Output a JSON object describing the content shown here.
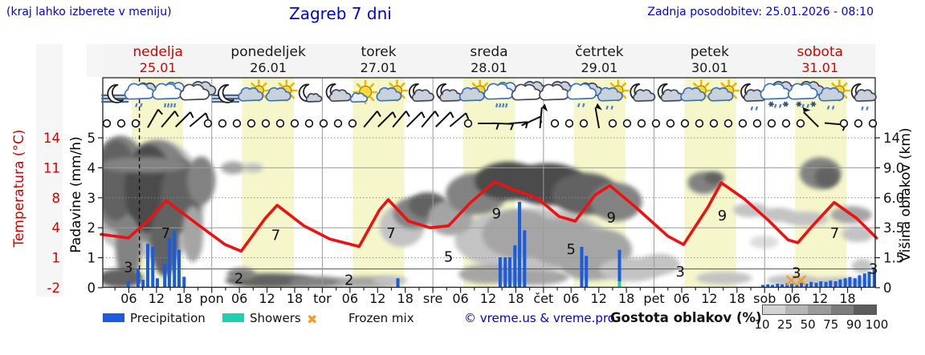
{
  "header": {
    "hint": "(kraj lahko izberete v meniju)",
    "title": "Zagreb 7 dni",
    "updated": "Zadnja posodobitev: 25.01.2026 - 08:10"
  },
  "days": [
    {
      "name": "nedelja",
      "date": "25.01",
      "highlight": true
    },
    {
      "name": "ponedeljek",
      "date": "26.01",
      "highlight": false
    },
    {
      "name": "torek",
      "date": "27.01",
      "highlight": false
    },
    {
      "name": "sreda",
      "date": "28.01",
      "highlight": false
    },
    {
      "name": "četrtek",
      "date": "29.01",
      "highlight": false
    },
    {
      "name": "petek",
      "date": "30.01",
      "highlight": false
    },
    {
      "name": "sobota",
      "date": "31.01",
      "highlight": true
    }
  ],
  "axes": {
    "temp_label": "Temperatura (°C)",
    "temp_ticks": [
      "14",
      "11",
      "8",
      "4",
      "1",
      "-2"
    ],
    "precip_label": "Padavine (mm/h)",
    "precip_ticks": [
      "5",
      "4",
      "3",
      "2",
      "1",
      "0"
    ],
    "cloud_label": "Višina oblakov (km)",
    "cloud_ticks": [
      "14",
      "9.0",
      "6.0",
      "3.5",
      "1.5",
      "0"
    ],
    "x_ticks": [
      {
        "label": "06",
        "h": 6
      },
      {
        "label": "12",
        "h": 12
      },
      {
        "label": "18",
        "h": 18
      },
      {
        "label": "pon",
        "h": 24
      },
      {
        "label": "06",
        "h": 30
      },
      {
        "label": "12",
        "h": 36
      },
      {
        "label": "18",
        "h": 42
      },
      {
        "label": "tor",
        "h": 48
      },
      {
        "label": "06",
        "h": 54
      },
      {
        "label": "12",
        "h": 60
      },
      {
        "label": "18",
        "h": 66
      },
      {
        "label": "sre",
        "h": 72
      },
      {
        "label": "06",
        "h": 78
      },
      {
        "label": "12",
        "h": 84
      },
      {
        "label": "18",
        "h": 90
      },
      {
        "label": "čet",
        "h": 96
      },
      {
        "label": "06",
        "h": 102
      },
      {
        "label": "12",
        "h": 108
      },
      {
        "label": "18",
        "h": 114
      },
      {
        "label": "pet",
        "h": 120
      },
      {
        "label": "06",
        "h": 126
      },
      {
        "label": "12",
        "h": 132
      },
      {
        "label": "18",
        "h": 138
      },
      {
        "label": "sob",
        "h": 144
      },
      {
        "label": "06",
        "h": 150
      },
      {
        "label": "12",
        "h": 156
      },
      {
        "label": "18",
        "h": 162
      }
    ]
  },
  "legend": {
    "precipitation": "Precipitation",
    "showers": "Showers",
    "frozen_mix": "Frozen mix",
    "frozen_glyph": "✖",
    "copyright": "© vreme.us & vreme.pro",
    "cloud_density_label": "Gostota oblakov (%)",
    "cloud_density_ticks": [
      "10",
      "25",
      "50",
      "75",
      "90",
      "100"
    ]
  },
  "colors": {
    "blue_text": "#0000e0",
    "red_text": "#d40000",
    "temp_curve": "#ee1111",
    "precip": "#1a5cdf",
    "showers": "#1ecfb0",
    "frozen": "#f0a125",
    "day_band": "#f5f7cb",
    "grid_dotted": "#8a8a8a",
    "grid_solid": "#9c9c9c",
    "zero_line": "#555555",
    "frame": "#222222",
    "density_scale": [
      "#d3d3d3",
      "#b5b5b5",
      "#9b9b9b",
      "#7d7d7d",
      "#5c5c5c"
    ],
    "cloud_shades": {
      "10": "#dcdcdc",
      "25": "#c3c3c3",
      "50": "#a5a5a5",
      "75": "#828282",
      "90": "#626262",
      "100": "#4b4b4b"
    }
  },
  "chart_data": {
    "type": "meteogram",
    "time_axis": {
      "start": "nedelja 25.01 00:00",
      "end": "sobota 31.01 24:00",
      "hours": 168,
      "now_h": 8.3
    },
    "daylight": {
      "sunrise_h": 6.6,
      "sunset_h": 17.8
    },
    "temperature": {
      "unit": "°C",
      "ylim": [
        -2,
        14
      ],
      "points": [
        [
          0,
          3.7
        ],
        [
          5.9,
          3.3
        ],
        [
          10.3,
          5.2
        ],
        [
          14.1,
          7.3
        ],
        [
          20.8,
          4.8
        ],
        [
          26.9,
          2.6
        ],
        [
          30.4,
          1.9
        ],
        [
          35.6,
          5.4
        ],
        [
          38.2,
          6.8
        ],
        [
          44,
          4.6
        ],
        [
          49.6,
          3.2
        ],
        [
          56,
          2.4
        ],
        [
          60.4,
          6.3
        ],
        [
          62.3,
          7.4
        ],
        [
          66.7,
          5.1
        ],
        [
          71.4,
          4.4
        ],
        [
          75.4,
          4.6
        ],
        [
          80.2,
          7.1
        ],
        [
          85.4,
          9.3
        ],
        [
          89.8,
          8.4
        ],
        [
          94.6,
          7.6
        ],
        [
          99.4,
          5.6
        ],
        [
          102.9,
          5.1
        ],
        [
          107.2,
          7.9
        ],
        [
          110.4,
          8.9
        ],
        [
          116,
          6.6
        ],
        [
          123,
          3.5
        ],
        [
          126.4,
          2.6
        ],
        [
          131.7,
          6.6
        ],
        [
          134.6,
          9.2
        ],
        [
          139.5,
          7.5
        ],
        [
          144.8,
          5.2
        ],
        [
          149.1,
          3.1
        ],
        [
          151.2,
          2.8
        ],
        [
          154.4,
          4.6
        ],
        [
          159.1,
          7.1
        ],
        [
          164,
          5.4
        ],
        [
          168.3,
          3.3
        ]
      ],
      "labels": [
        {
          "h": 5.9,
          "v": "3",
          "p": 0.2
        },
        {
          "h": 14,
          "v": "7",
          "p": 3.8
        },
        {
          "h": 29.9,
          "v": "2",
          "p": -1
        },
        {
          "h": 37.9,
          "v": "7",
          "p": 3.6
        },
        {
          "h": 53.8,
          "v": "2",
          "p": -1.2
        },
        {
          "h": 62.9,
          "v": "7",
          "p": 3.8
        },
        {
          "h": 75.4,
          "v": "5",
          "p": 1.3
        },
        {
          "h": 85.8,
          "v": "9",
          "p": 5.9
        },
        {
          "h": 102,
          "v": "5",
          "p": 2.1
        },
        {
          "h": 110.7,
          "v": "9",
          "p": 5.5
        },
        {
          "h": 125.7,
          "v": "3",
          "p": -0.3
        },
        {
          "h": 134.8,
          "v": "9",
          "p": 5.7
        },
        {
          "h": 150.9,
          "v": "3",
          "p": -0.4
        },
        {
          "h": 159.2,
          "v": "7",
          "p": 3.8
        },
        {
          "h": 167.6,
          "v": "3",
          "p": 0
        }
      ]
    },
    "precipitation": {
      "unit": "mm/h",
      "ylim": [
        0,
        5
      ],
      "bars": [
        [
          5.9,
          0.2
        ],
        [
          8,
          0.6
        ],
        [
          9.1,
          0.25
        ],
        [
          10.1,
          1.45
        ],
        [
          11.2,
          1.35
        ],
        [
          12.2,
          0.3
        ],
        [
          13.8,
          0.8
        ],
        [
          14.8,
          1.65
        ],
        [
          15.9,
          1.9
        ],
        [
          16.9,
          1.25
        ],
        [
          18,
          0.35
        ],
        [
          64.4,
          0.3
        ],
        [
          86.6,
          1.0
        ],
        [
          87.7,
          1.0
        ],
        [
          88.7,
          1.0
        ],
        [
          89.8,
          1.4
        ],
        [
          90.8,
          2.85
        ],
        [
          91.9,
          1.9
        ],
        [
          104.3,
          1.35
        ],
        [
          105.3,
          1.05
        ],
        [
          112.5,
          1.25
        ],
        [
          143.6,
          0.08
        ],
        [
          144.7,
          0.1
        ],
        [
          145.7,
          0.08
        ],
        [
          146.8,
          0.12
        ],
        [
          147.8,
          0.1
        ],
        [
          148.9,
          0.14
        ],
        [
          149.9,
          0.12
        ],
        [
          151.0,
          0.1
        ],
        [
          152.0,
          0.15
        ],
        [
          153.1,
          0.12
        ],
        [
          154.1,
          0.18
        ],
        [
          155.2,
          0.15
        ],
        [
          156.2,
          0.2
        ],
        [
          157.3,
          0.18
        ],
        [
          158.3,
          0.22
        ],
        [
          159.4,
          0.2
        ],
        [
          160.4,
          0.26
        ],
        [
          161.5,
          0.3
        ],
        [
          162.5,
          0.34
        ],
        [
          163.6,
          0.3
        ],
        [
          164.6,
          0.4
        ],
        [
          165.7,
          0.46
        ],
        [
          166.7,
          0.52
        ],
        [
          167.8,
          0.6
        ]
      ]
    },
    "showers": {
      "unit": "mm/h",
      "bars": [
        [
          112.5,
          0.2
        ]
      ]
    },
    "frozen_mix": {
      "hours": [
        149.8,
        151.9
      ]
    },
    "cloud_cover": {
      "unit": "density % (altitude in axis levels 0-5)",
      "blobs": [
        [
          4.2,
          3.18,
          7,
          1.87,
          25
        ],
        [
          12.9,
          2.9,
          9.6,
          2.0,
          25
        ],
        [
          4.2,
          3.45,
          6.1,
          1.6,
          75
        ],
        [
          12.1,
          3.18,
          7.9,
          1.74,
          75
        ],
        [
          3.3,
          3.58,
          4.4,
          1.34,
          90
        ],
        [
          10.3,
          3.3,
          5.2,
          1.47,
          100
        ],
        [
          17.3,
          3.05,
          4.4,
          1.2,
          90
        ],
        [
          21.7,
          3.58,
          3.1,
          0.8,
          75
        ],
        [
          5.9,
          1.31,
          2.8,
          1.07,
          75
        ],
        [
          13.8,
          1.58,
          3.1,
          1.2,
          90
        ],
        [
          19.9,
          1.79,
          2.3,
          0.94,
          50
        ],
        [
          9.4,
          4.1,
          9.6,
          0.27,
          75
        ],
        [
          4.2,
          0.32,
          4.9,
          0.32,
          90
        ],
        [
          28.6,
          4.0,
          2.6,
          0.21,
          50
        ],
        [
          33,
          4.0,
          2.1,
          0.16,
          25
        ],
        [
          36.5,
          0.24,
          9.6,
          0.24,
          90
        ],
        [
          47,
          0.19,
          6.1,
          0.19,
          75
        ],
        [
          30.4,
          0.45,
          3.1,
          0.21,
          75
        ],
        [
          57.5,
          0.19,
          6.6,
          0.19,
          50
        ],
        [
          62.7,
          0.24,
          3.8,
          0.16,
          25
        ],
        [
          65.3,
          2.06,
          4.9,
          0.7,
          25
        ],
        [
          67.9,
          2.49,
          4.5,
          0.53,
          75
        ],
        [
          70.9,
          2.75,
          4.2,
          0.43,
          90
        ],
        [
          93.3,
          1.58,
          16.6,
          1.07,
          25
        ],
        [
          75.8,
          2.33,
          4.9,
          0.59,
          50
        ],
        [
          81.4,
          3.13,
          6.6,
          0.7,
          75
        ],
        [
          88.4,
          3.56,
          7.3,
          0.64,
          100
        ],
        [
          97.1,
          3.45,
          8.4,
          0.7,
          100
        ],
        [
          105.1,
          3.13,
          7.3,
          0.7,
          90
        ],
        [
          111.8,
          2.86,
          5.6,
          0.64,
          75
        ],
        [
          90.6,
          1.79,
          7.9,
          0.8,
          50
        ],
        [
          100.2,
          1.52,
          7.9,
          0.8,
          50
        ],
        [
          108.6,
          1.26,
          6.6,
          0.7,
          50
        ],
        [
          83.7,
          0.45,
          6.1,
          0.32,
          50
        ],
        [
          93.6,
          0.35,
          7.9,
          0.27,
          50
        ],
        [
          106.4,
          0.72,
          6.6,
          0.48,
          50
        ],
        [
          115.1,
          0.61,
          7,
          0.4,
          25
        ],
        [
          121.2,
          0.78,
          4.4,
          0.35,
          25
        ],
        [
          130.8,
          3.5,
          3.5,
          0.37,
          75
        ],
        [
          133.1,
          3.66,
          2.1,
          0.21,
          90
        ],
        [
          140.9,
          2.59,
          3.8,
          0.24,
          25
        ],
        [
          135.2,
          0.32,
          6.1,
          0.21,
          25
        ],
        [
          156.1,
          3.82,
          4.5,
          0.53,
          75
        ],
        [
          157.5,
          3.69,
          2.6,
          0.35,
          90
        ],
        [
          147,
          2.43,
          3.8,
          0.24,
          25
        ],
        [
          153,
          2.3,
          4.9,
          0.24,
          25
        ],
        [
          162.8,
          2.43,
          4.5,
          0.29,
          50
        ],
        [
          164.2,
          1.79,
          3.5,
          0.27,
          25
        ],
        [
          150,
          0.24,
          5.6,
          0.19,
          25
        ],
        [
          160,
          0.19,
          6.6,
          0.16,
          25
        ],
        [
          165.2,
          0.72,
          2.3,
          0.24,
          25
        ],
        [
          143.9,
          1.52,
          3.1,
          0.21,
          10
        ]
      ]
    },
    "weather_icons": [
      "moon-fog",
      "clouds-drizzle",
      "rain",
      "clouds",
      "moon-fog",
      "sun-cloud",
      "sun-cloud",
      "moon-cloud-small",
      "moon-cloud",
      "sun",
      "sun-cloud",
      "moon-cloud",
      "moon-cloud",
      "sun-cloud",
      "rain",
      "clouds",
      "clouds",
      "clouds-drizzle",
      "sun-cloud-drizzle",
      "moon-cloud",
      "moon-cloud",
      "sun-cloud",
      "sun-cloud",
      "moon-cloud-drizzle",
      "cloud-sleet",
      "cloud-sleet",
      "sun-cloud-drizzle",
      "moon-cloud-drizzle"
    ],
    "wind": [
      "o",
      "o",
      "o",
      {
        "a": -60
      },
      {
        "a": -50
      },
      {
        "a": -45
      },
      {
        "a": -40
      },
      "o",
      "o",
      "o",
      "o",
      "o",
      "o",
      "o",
      "o",
      "o",
      "o",
      "o",
      {
        "a": -50
      },
      {
        "a": -45
      },
      {
        "a": -50
      },
      {
        "a": -45
      },
      {
        "a": -50
      },
      {
        "a": -45
      },
      {
        "a": -40
      },
      "o",
      {
        "a": 0
      },
      {
        "a": 2
      },
      {
        "a": -5
      },
      {
        "a": -25
      },
      {
        "a": -85,
        "f": 1
      },
      "o",
      "o",
      "o",
      {
        "a": -100,
        "f": 1
      },
      "o",
      "o",
      "o",
      "o",
      "o",
      "o",
      "o",
      "o",
      "o",
      "o",
      "o",
      "o",
      "o",
      "o",
      {
        "a": -135,
        "f": 1
      },
      {
        "a": 5
      },
      "o",
      "o",
      "o"
    ]
  }
}
